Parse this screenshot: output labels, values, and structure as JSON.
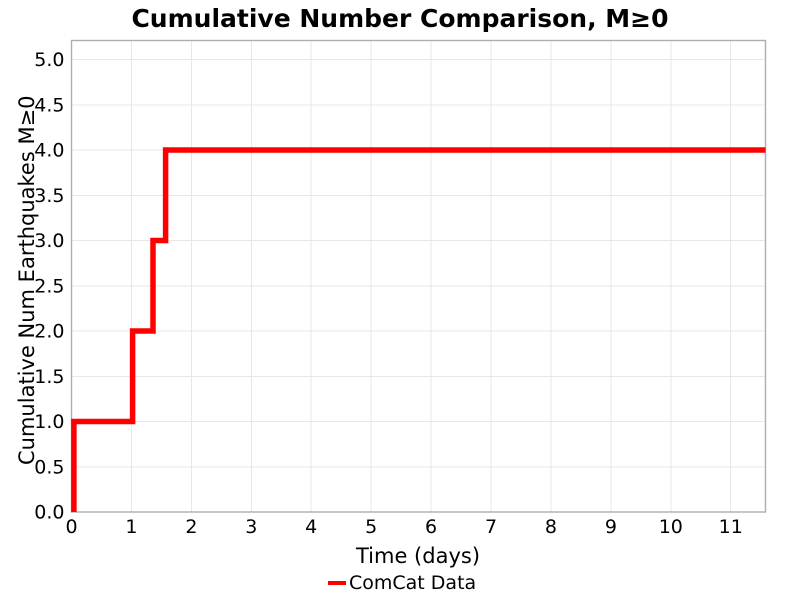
{
  "page": {
    "background": "#ffffff"
  },
  "chart_data": {
    "type": "step",
    "title": "Cumulative Number Comparison, M≥0",
    "xlabel": "Time (days)",
    "ylabel": "Cumulative Num Earthquakes M≥0",
    "xlim": [
      0,
      11.58
    ],
    "ylim": [
      0,
      5.21
    ],
    "xtick_values": [
      0,
      1,
      2,
      3,
      4,
      5,
      6,
      7,
      8,
      9,
      10,
      11
    ],
    "xtick_labels": [
      "0",
      "1",
      "2",
      "3",
      "4",
      "5",
      "6",
      "7",
      "8",
      "9",
      "10",
      "11"
    ],
    "ytick_values": [
      0,
      0.5,
      1,
      1.5,
      2,
      2.5,
      3,
      3.5,
      4,
      4.5,
      5
    ],
    "ytick_labels": [
      "0.0",
      "0.5",
      "1.0",
      "1.5",
      "2.0",
      "2.5",
      "3.0",
      "3.5",
      "4.0",
      "4.5",
      "5.0"
    ],
    "grid": true,
    "legend": {
      "position": "bottom-center",
      "entries": [
        {
          "label": "ComCat Data",
          "color": "#ff0000"
        }
      ]
    },
    "series": [
      {
        "name": "ComCat Data",
        "color": "#ff0000",
        "line_width": 5.5,
        "points": [
          [
            0.04,
            0
          ],
          [
            0.04,
            1
          ],
          [
            1.02,
            1
          ],
          [
            1.02,
            2
          ],
          [
            1.36,
            2
          ],
          [
            1.36,
            3
          ],
          [
            1.57,
            3
          ],
          [
            1.57,
            4
          ],
          [
            11.58,
            4
          ]
        ]
      }
    ],
    "colors": {
      "grid": "#e7e7e7",
      "border": "#adadad",
      "text": "#000000",
      "background": "#ffffff"
    }
  }
}
